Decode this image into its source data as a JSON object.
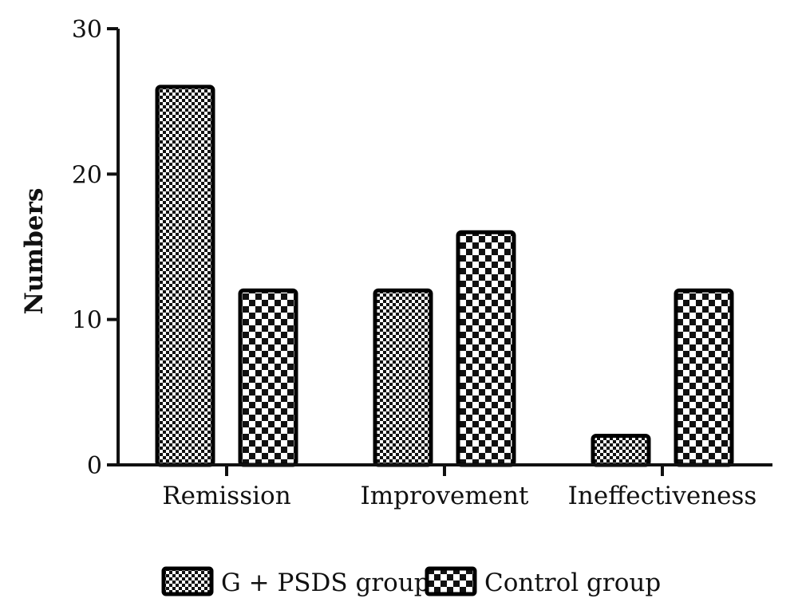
{
  "chart_data": {
    "type": "bar",
    "title": "",
    "xlabel": "",
    "ylabel": "Numbers",
    "ylim": [
      0,
      30
    ],
    "yticks": [
      0,
      10,
      20,
      30
    ],
    "grid": false,
    "legend_position": "bottom",
    "categories": [
      "Remission",
      "Improvement",
      "Ineffectiveness"
    ],
    "series": [
      {
        "name": "G + PSDS group",
        "values": [
          26,
          12,
          2
        ],
        "pattern": "fine-checker",
        "color": "#000000"
      },
      {
        "name": "Control group",
        "values": [
          12,
          16,
          12
        ],
        "pattern": "coarse-checker",
        "color": "#000000"
      }
    ]
  }
}
